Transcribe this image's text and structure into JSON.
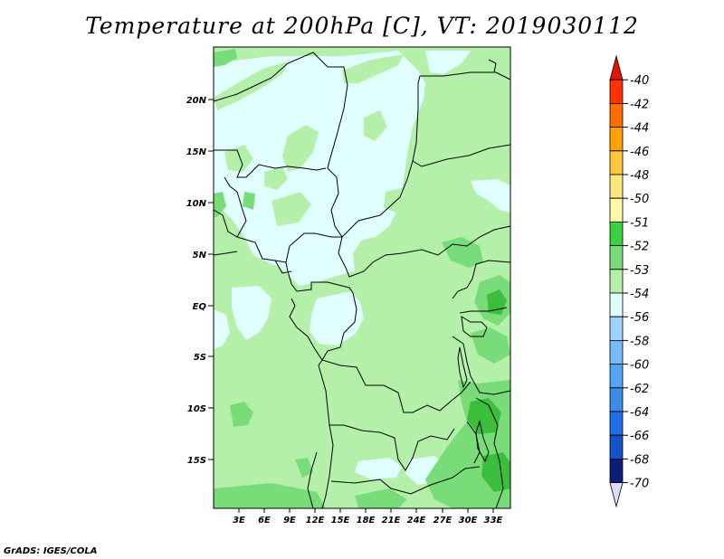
{
  "title": "Temperature at 200hPa [C], VT: 2019030112",
  "credit": "GrADS: IGES/COLA",
  "map": {
    "y_axis_labels": [
      "20N",
      "15N",
      "10N",
      "5N",
      "EQ",
      "5S",
      "10S",
      "15S"
    ],
    "x_axis_labels": [
      "3E",
      "6E",
      "9E",
      "12E",
      "15E",
      "18E",
      "21E",
      "24E",
      "27E",
      "30E",
      "33E"
    ],
    "field_colors": {
      "-51": "#ffffff",
      "-52": "#3cbe3c",
      "-53": "#78dc78",
      "-54": "#b4f0aa",
      "-56": "#e1ffff"
    }
  },
  "colorbar": {
    "labels": [
      "-40",
      "-42",
      "-44",
      "-46",
      "-48",
      "-50",
      "-51",
      "-52",
      "-53",
      "-54",
      "-56",
      "-58",
      "-60",
      "-62",
      "-64",
      "-66",
      "-68",
      "-70"
    ],
    "colors": [
      "#e11400",
      "#ff3200",
      "#ff6e00",
      "#ffa000",
      "#ffc83c",
      "#ffe678",
      "#fffaaa",
      "#37d23c",
      "#78dc78",
      "#b4f0aa",
      "#e1ffff",
      "#a0d2ff",
      "#78b9fa",
      "#50a5f5",
      "#3c8ce6",
      "#1e6eeb",
      "#1450c8",
      "#0a1e78",
      "#dcdcff"
    ]
  }
}
